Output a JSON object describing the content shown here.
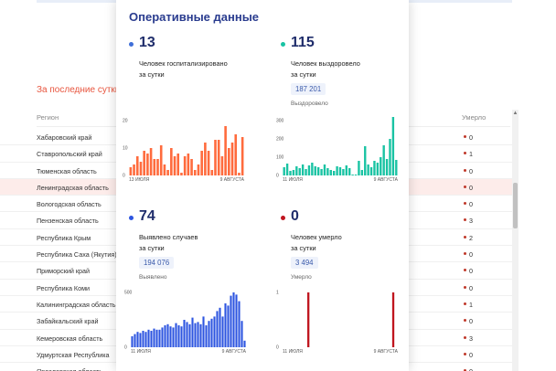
{
  "background": {
    "period_label": "За последние сутки",
    "table": {
      "col_region": "Регион",
      "col_died": "Умерло",
      "rows": [
        {
          "region": "Хабаровский край",
          "died": "0"
        },
        {
          "region": "Ставропольский край",
          "died": "1"
        },
        {
          "region": "Тюменская область",
          "died": "0"
        },
        {
          "region": "Ленинградская область",
          "died": "0",
          "highlighted": true
        },
        {
          "region": "Вологодская область",
          "died": "0"
        },
        {
          "region": "Пензенская область",
          "died": "3"
        },
        {
          "region": "Республика Крым",
          "died": "2"
        },
        {
          "region": "Республика Саха (Якутия)",
          "died": "0"
        },
        {
          "region": "Приморский край",
          "died": "0"
        },
        {
          "region": "Республика Коми",
          "died": "0"
        },
        {
          "region": "Калининградская область",
          "died": "1"
        },
        {
          "region": "Забайкальский край",
          "died": "0"
        },
        {
          "region": "Кемеровская область",
          "died": "3"
        },
        {
          "region": "Удмуртская Республика",
          "died": "0"
        },
        {
          "region": "Ярославская область",
          "died": "0"
        }
      ]
    }
  },
  "modal": {
    "title": "Оперативные данные",
    "stats": [
      {
        "id": "hospitalized",
        "number": "13",
        "desc_line1": "Человек госпитализировано",
        "desc_line2": "за сутки",
        "color": "#3f6fd8"
      },
      {
        "id": "recovered",
        "number": "115",
        "desc_line1": "Человек выздоровело",
        "desc_line2": "за сутки",
        "total": "187 201",
        "total_label": "Выздоровело",
        "color": "#19c3a3"
      },
      {
        "id": "cases",
        "number": "74",
        "desc_line1": "Выявлено случаев",
        "desc_line2": "за сутки",
        "total": "194 076",
        "total_label": "Выявлено",
        "color": "#2d55e0"
      },
      {
        "id": "deaths",
        "number": "0",
        "desc_line1": "Человек умерло",
        "desc_line2": "за сутки",
        "total": "3 494",
        "total_label": "Умерло",
        "color": "#c0151f"
      }
    ]
  },
  "chart_data": [
    {
      "type": "bar",
      "id": "hospitalized-chart",
      "color": "#ff6b3d",
      "x_start": "13 ИЮЛЯ",
      "x_end": "9 АВГУСТА",
      "y_ticks": [
        "0",
        "10",
        "20"
      ],
      "ylim": [
        0,
        20
      ],
      "values": [
        3,
        4,
        7,
        5,
        9,
        8,
        10,
        6,
        6,
        11,
        4,
        2,
        10,
        7,
        8,
        1,
        7,
        8,
        6,
        2,
        4,
        9,
        12,
        9,
        2,
        13,
        13,
        7,
        18,
        10,
        12,
        15,
        1,
        14
      ]
    },
    {
      "type": "bar",
      "id": "recovered-chart",
      "color": "#19c3a3",
      "x_start": "11 ИЮЛЯ",
      "x_end": "9 АВГУСТА",
      "y_ticks": [
        "0",
        "100",
        "200",
        "300"
      ],
      "ylim": [
        0,
        300
      ],
      "values": [
        45,
        65,
        25,
        30,
        50,
        40,
        60,
        35,
        55,
        70,
        50,
        45,
        35,
        60,
        40,
        30,
        25,
        50,
        45,
        35,
        55,
        40,
        5,
        5,
        80,
        30,
        160,
        60,
        45,
        80,
        70,
        100,
        165,
        90,
        200,
        320,
        85
      ]
    },
    {
      "type": "bar",
      "id": "cases-chart",
      "color": "#2d55e0",
      "x_start": "11 ИЮЛЯ",
      "x_end": "9 АВГУСТА",
      "y_ticks": [
        "0",
        "500"
      ],
      "ylim": [
        0,
        500
      ],
      "values": [
        100,
        120,
        140,
        130,
        150,
        140,
        160,
        150,
        170,
        160,
        160,
        180,
        200,
        210,
        190,
        180,
        220,
        200,
        190,
        250,
        230,
        210,
        270,
        220,
        230,
        210,
        280,
        200,
        240,
        260,
        280,
        330,
        360,
        280,
        400,
        380,
        470,
        500,
        480,
        420,
        240,
        60
      ]
    },
    {
      "type": "bar",
      "id": "deaths-chart",
      "color": "#c0151f",
      "x_start": "11 ИЮЛЯ",
      "x_end": "9 АВГУСТА",
      "y_ticks": [
        "0",
        "1"
      ],
      "ylim": [
        0,
        1
      ],
      "values": [
        0,
        0,
        0,
        0,
        0,
        0,
        0,
        0,
        1,
        0,
        0,
        0,
        0,
        0,
        0,
        0,
        0,
        0,
        0,
        0,
        0,
        0,
        0,
        0,
        0,
        0,
        0,
        0,
        0,
        0,
        0,
        0,
        0,
        0,
        0,
        0,
        1,
        0
      ]
    }
  ]
}
